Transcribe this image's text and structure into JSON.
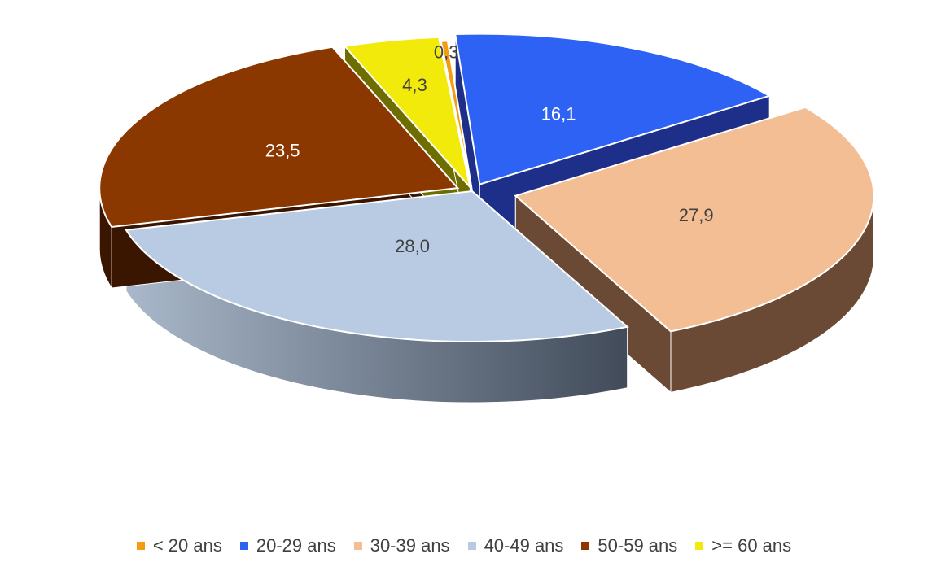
{
  "chart_data": {
    "type": "pie",
    "style": "3d-exploded",
    "categories": [
      "< 20 ans",
      "20-29 ans",
      "30-39 ans",
      "40-49 ans",
      "50-59 ans",
      ">= 60 ans"
    ],
    "values": [
      0.3,
      16.1,
      27.9,
      28.0,
      23.5,
      4.3
    ],
    "labels": [
      "0,3",
      "16,1",
      "27,9",
      "28,0",
      "23,5",
      "4,3"
    ],
    "colors": [
      "#F39C12",
      "#2E62F5",
      "#F4BE95",
      "#B8CBE3",
      "#8B3700",
      "#F1EA0A"
    ],
    "label_colors": [
      "#404040",
      "#ffffff",
      "#404040",
      "#404040",
      "#ffffff",
      "#404040"
    ],
    "legend_position": "bottom",
    "title": ""
  }
}
